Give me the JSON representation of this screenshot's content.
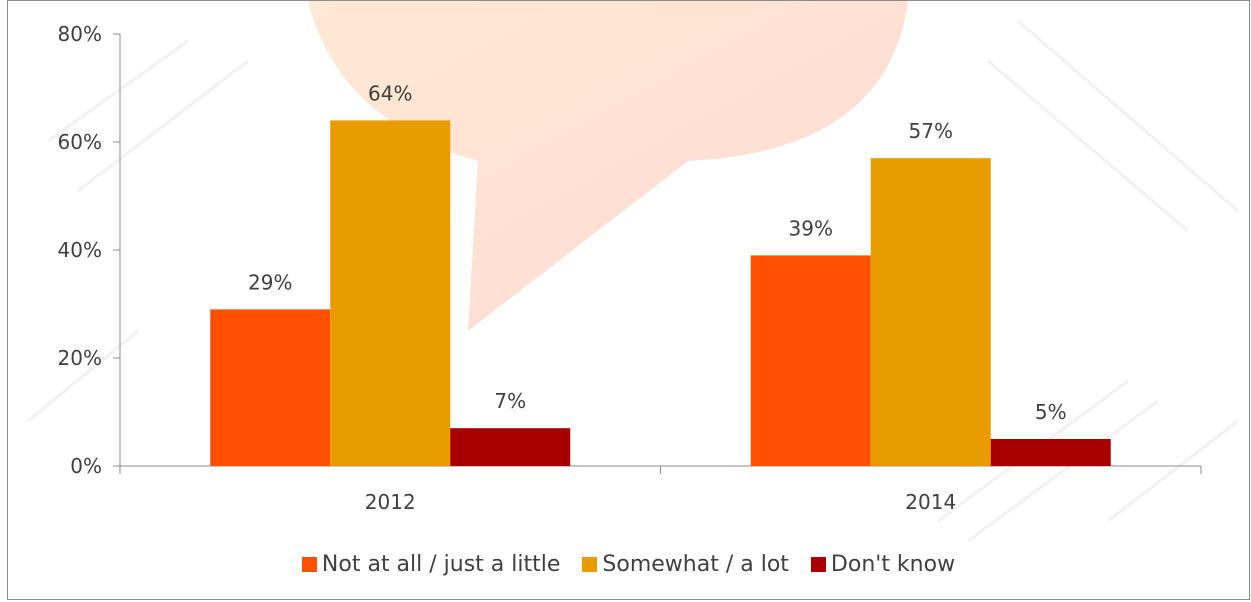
{
  "chart_data": {
    "type": "bar",
    "categories": [
      "2012",
      "2014"
    ],
    "series": [
      {
        "name": "Not at all / just a little",
        "values": [
          29,
          39
        ],
        "color": "#FF5000",
        "labels": [
          "29%",
          "39%"
        ]
      },
      {
        "name": "Somewhat / a lot",
        "values": [
          64,
          57
        ],
        "color": "#E89C00",
        "labels": [
          "64%",
          "57%"
        ]
      },
      {
        "name": "Don't know",
        "values": [
          7,
          5
        ],
        "color": "#A80000",
        "labels": [
          "7%",
          "5%"
        ]
      }
    ],
    "ylim": [
      0,
      80
    ],
    "yticks": [
      0,
      20,
      40,
      60,
      80
    ],
    "ytick_labels": [
      "0%",
      "20%",
      "40%",
      "60%",
      "80%"
    ],
    "title": "",
    "xlabel": "",
    "ylabel": "",
    "grid": false,
    "legend_position": "bottom"
  }
}
